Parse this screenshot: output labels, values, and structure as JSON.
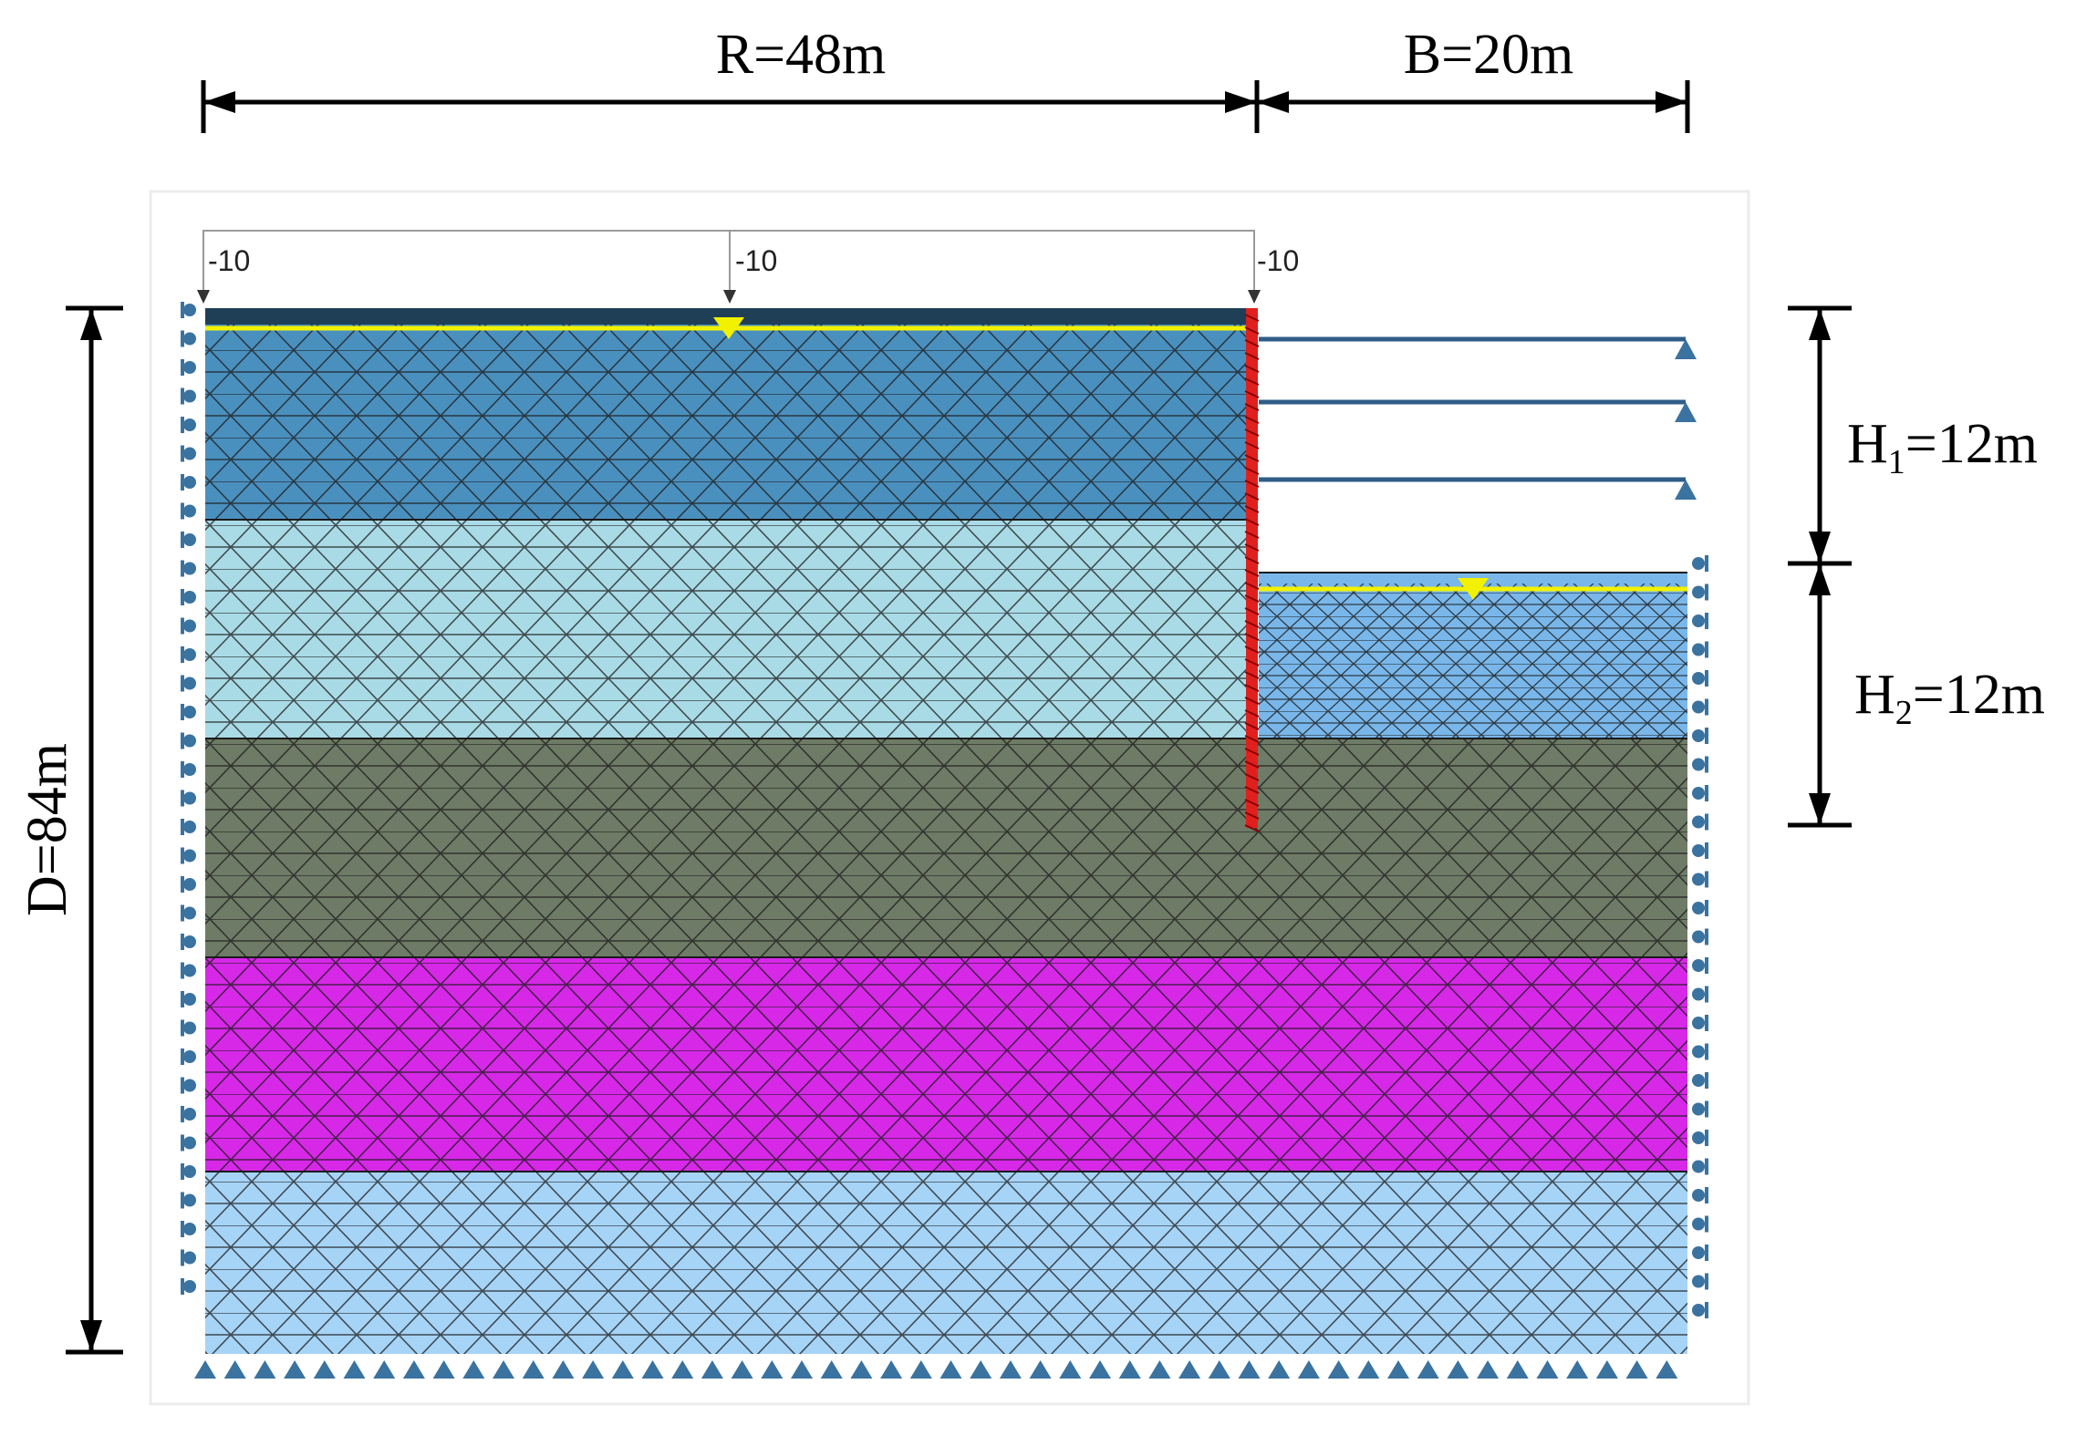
{
  "dimensions": {
    "R": "R=48m",
    "B": "B=20m",
    "D": "D=84m",
    "H1_main": "H",
    "H1_sub": "1",
    "H1_value": "=12m",
    "H2_main": "H",
    "H2_sub": "2",
    "H2_value": "=12m"
  },
  "load_labels": [
    "-10",
    "-10",
    "-10"
  ],
  "colors": {
    "layer1": "#4a90bf",
    "layer2": "#a9dbe6",
    "layer3": "#6e7b66",
    "layer4": "#d728e8",
    "layer5": "#a6d4f7",
    "excavated_soil": "#79b7ea",
    "top_band": "#1e3f56",
    "wall": "#e0201e",
    "water_table": "#f2f200",
    "strut": "#2f5d88",
    "support": "#3a72a0",
    "mesh": "#1a1a1a"
  }
}
